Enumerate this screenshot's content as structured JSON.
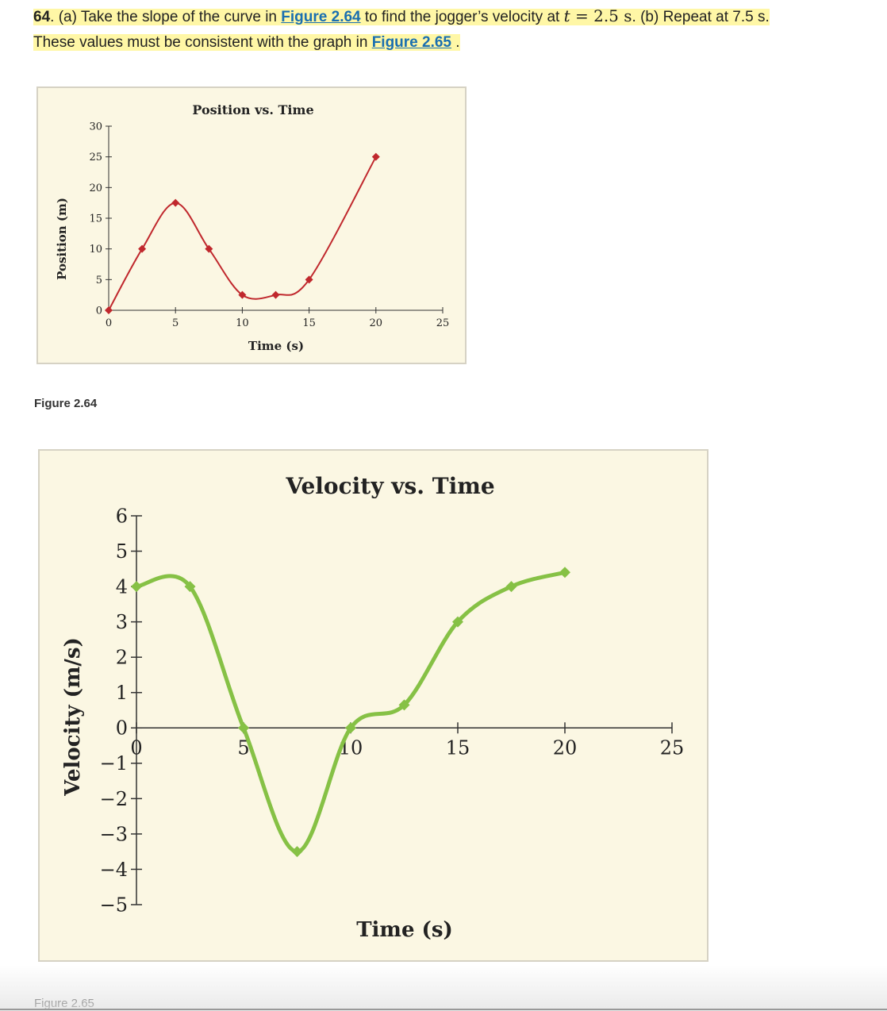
{
  "problem": {
    "number": "64",
    "part_a_text": ". (a) Take the slope of the curve in ",
    "link1": "Figure 2.64",
    "mid_text": " to find the jogger’s velocity at ",
    "math_var": "t",
    "math_rest": " = 2.5 s",
    "part_b_text": ". (b) Repeat at 7.5 s.",
    "line2_text": "These values must be consistent with the graph in ",
    "link2": "Figure 2.65",
    "end_text": " ."
  },
  "captions": {
    "fig1": "Figure 2.64",
    "fig2": "Figure 2.65"
  },
  "chart_data": [
    {
      "type": "line",
      "title": "Position vs. Time",
      "xlabel": "Time (s)",
      "ylabel": "Position (m)",
      "xlim": [
        0,
        25
      ],
      "ylim": [
        0,
        30
      ],
      "x_ticks": [
        0,
        5,
        10,
        15,
        20,
        25
      ],
      "y_ticks": [
        0,
        5,
        10,
        15,
        20,
        25,
        30
      ],
      "series": [
        {
          "color": "#c0282d",
          "x": [
            0,
            2.5,
            5,
            7.5,
            10,
            12.5,
            15,
            20
          ],
          "y": [
            0,
            10,
            17.5,
            10,
            2.5,
            2.5,
            5,
            25
          ]
        }
      ],
      "grid": false
    },
    {
      "type": "line",
      "title": "Velocity vs. Time",
      "xlabel": "Time (s)",
      "ylabel": "Velocity (m/s)",
      "xlim": [
        0,
        25
      ],
      "ylim": [
        -5,
        6
      ],
      "x_ticks": [
        0,
        5,
        10,
        15,
        20,
        25
      ],
      "y_ticks": [
        -5,
        -4,
        -3,
        -2,
        -1,
        0,
        1,
        2,
        3,
        4,
        5,
        6
      ],
      "y_tick_labels": [
        "−5",
        "−4",
        "−3",
        "−2",
        "−1",
        "0",
        "1",
        "2",
        "3",
        "4",
        "5",
        "6"
      ],
      "series": [
        {
          "color": "#86c145",
          "x": [
            0,
            2.5,
            5,
            7.5,
            10,
            12.5,
            15,
            17.5,
            20
          ],
          "y": [
            4,
            4,
            0,
            -3.5,
            0,
            0.65,
            3,
            4,
            4.4
          ]
        }
      ],
      "grid": false
    }
  ]
}
